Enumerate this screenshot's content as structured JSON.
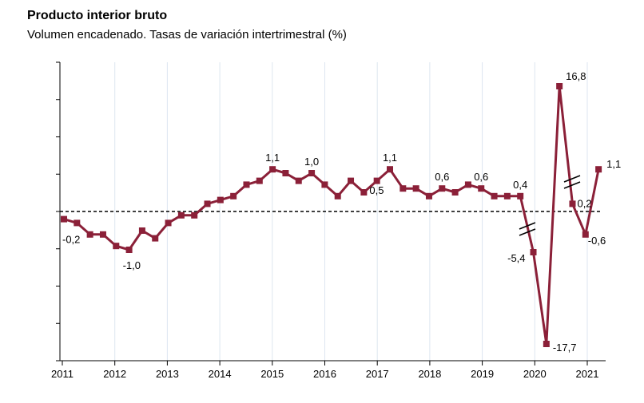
{
  "chart_data": {
    "type": "line",
    "title": "Producto interior bruto",
    "subtitle": "Volumen encadenado. Tasas de variación intertrimestral (%)",
    "xlabel": "",
    "ylabel": "",
    "x_tick_labels": [
      "2011",
      "2012",
      "2013",
      "2014",
      "2015",
      "2016",
      "2017",
      "2018",
      "2019",
      "2020",
      "2021"
    ],
    "frequency": "quarterly",
    "start": "2011-Q1",
    "values": [
      -0.2,
      -0.3,
      -0.6,
      -0.6,
      -0.9,
      -1.0,
      -0.5,
      -0.7,
      -0.3,
      -0.1,
      -0.1,
      0.2,
      0.3,
      0.4,
      0.7,
      0.8,
      1.1,
      1.0,
      0.8,
      1.0,
      0.7,
      0.4,
      0.8,
      0.5,
      0.8,
      1.1,
      0.6,
      0.6,
      0.4,
      0.6,
      0.5,
      0.7,
      0.6,
      0.4,
      0.4,
      0.4,
      -5.4,
      -17.7,
      16.8,
      0.2,
      -0.6,
      1.1
    ],
    "data_labels": [
      {
        "index": 0,
        "text": "-0,2"
      },
      {
        "index": 5,
        "text": "-1,0"
      },
      {
        "index": 16,
        "text": "1,1"
      },
      {
        "index": 19,
        "text": "1,0"
      },
      {
        "index": 23,
        "text": "0,5"
      },
      {
        "index": 25,
        "text": "1,1"
      },
      {
        "index": 29,
        "text": "0,6"
      },
      {
        "index": 32,
        "text": "0,6"
      },
      {
        "index": 35,
        "text": "0,4"
      },
      {
        "index": 36,
        "text": "-5,4"
      },
      {
        "index": 37,
        "text": "-17,7"
      },
      {
        "index": 38,
        "text": "16,8"
      },
      {
        "index": 39,
        "text": "0,2"
      },
      {
        "index": 40,
        "text": "-0,6"
      },
      {
        "index": 41,
        "text": "1,1"
      }
    ],
    "axis_break": true,
    "reference_line": 0,
    "grid": "vertical",
    "line_color": "#8b2038"
  }
}
